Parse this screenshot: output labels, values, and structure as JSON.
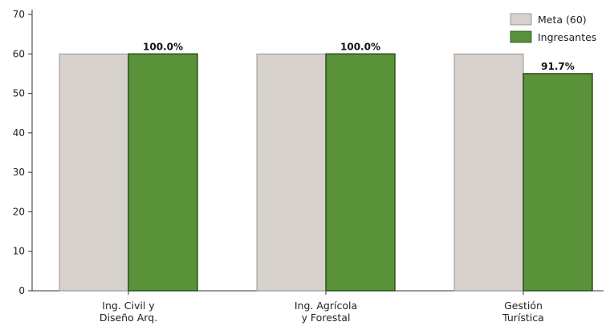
{
  "chart_data": {
    "type": "bar",
    "categories": [
      [
        "Ing. Civil y",
        "Diseño Arq."
      ],
      [
        "Ing. Agrícola",
        "y Forestal"
      ],
      [
        "Gestión",
        "Turística"
      ]
    ],
    "series": [
      {
        "name": "Meta (60)",
        "values": [
          60,
          60,
          60
        ],
        "color": "#d6d1cc"
      },
      {
        "name": "Ingresantes",
        "values": [
          60,
          60,
          55
        ],
        "color": "#5a923a"
      }
    ],
    "data_labels": [
      "100.0%",
      "100.0%",
      "91.7%"
    ],
    "yticks": [
      0,
      10,
      20,
      30,
      40,
      50,
      60,
      70
    ],
    "ylim": [
      0,
      70
    ],
    "xlabel": "",
    "ylabel": "",
    "title": "",
    "grid": false,
    "legend_position": "top-right"
  }
}
